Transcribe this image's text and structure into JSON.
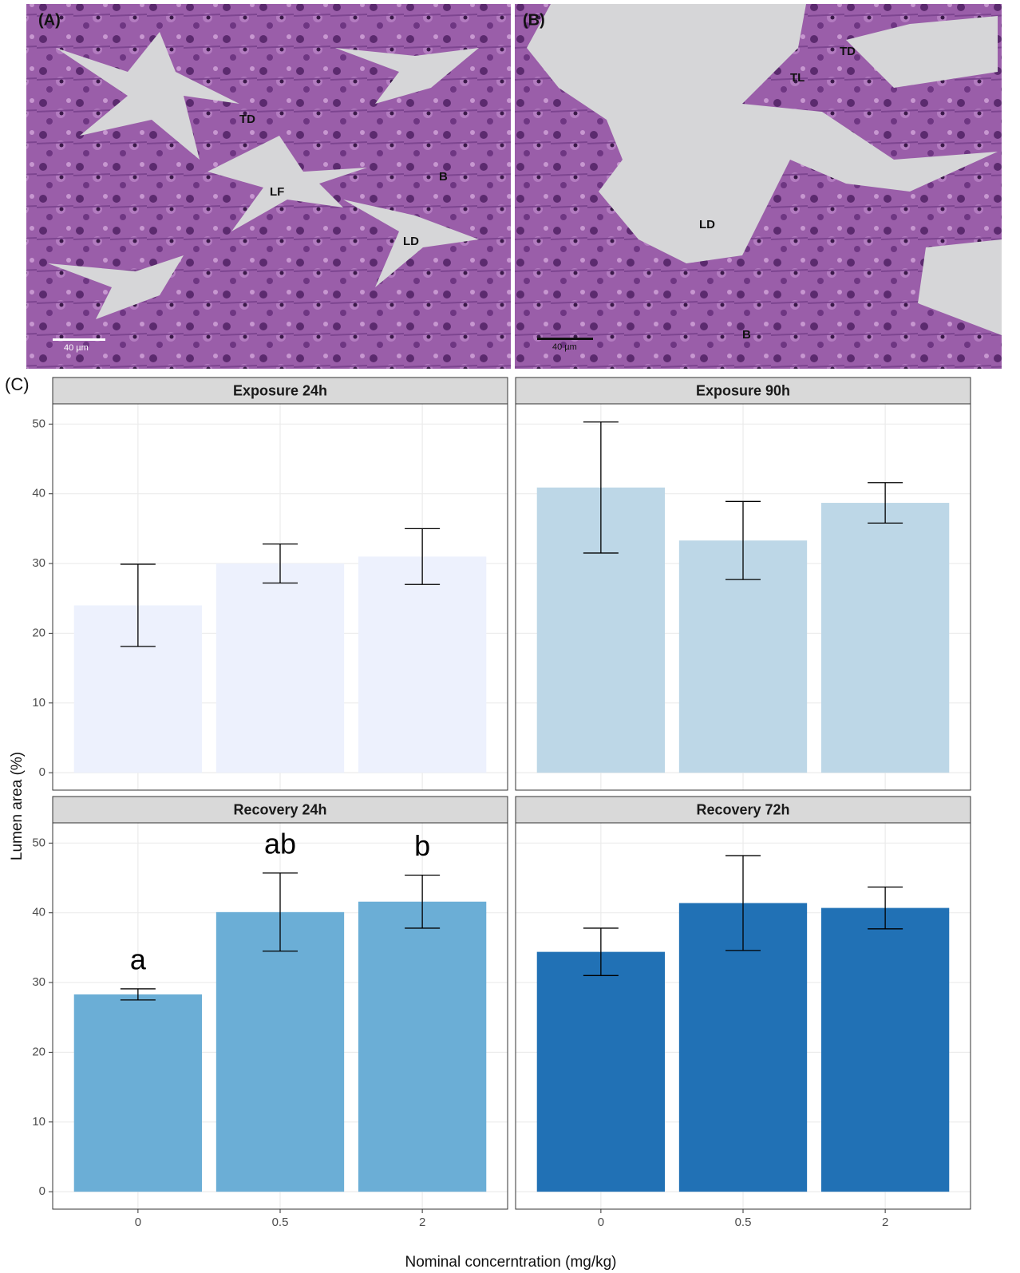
{
  "images": [
    {
      "label": "(A)",
      "annotations": [
        "TD",
        "LF",
        "B",
        "LD"
      ],
      "scale_bar": "40 µm"
    },
    {
      "label": "(B)",
      "annotations": [
        "TD",
        "TL",
        "LD",
        "B"
      ],
      "scale_bar": "40 µm"
    }
  ],
  "figure": {
    "panel_label": "(C)",
    "ylabel": "Lumen area (%)",
    "xlabel": "Nominal concerntration (mg/kg)"
  },
  "chart_data": [
    {
      "type": "bar",
      "title": "Exposure 24h",
      "categories": [
        "0",
        "0.5",
        "2"
      ],
      "values": [
        24,
        30,
        31
      ],
      "errors": [
        5.9,
        2.8,
        4.0
      ],
      "color": "#edf1fd",
      "ylim": [
        -2.5,
        52.9
      ],
      "yticks": [
        0,
        10,
        20,
        30,
        40,
        50
      ],
      "grid": true
    },
    {
      "type": "bar",
      "title": "Exposure 90h",
      "categories": [
        "0",
        "0.5",
        "2"
      ],
      "values": [
        40.9,
        33.3,
        38.7
      ],
      "errors": [
        9.4,
        5.6,
        2.9
      ],
      "color": "#bdd7e7",
      "ylim": [
        -2.5,
        52.9
      ],
      "yticks": [
        0,
        10,
        20,
        30,
        40,
        50
      ],
      "grid": true
    },
    {
      "type": "bar",
      "title": "Recovery 24h",
      "categories": [
        "0",
        "0.5",
        "2"
      ],
      "values": [
        28.3,
        40.1,
        41.6
      ],
      "errors": [
        0.8,
        5.6,
        3.8
      ],
      "labels": [
        "a",
        "ab",
        "b"
      ],
      "color": "#6baed6",
      "ylim": [
        -2.5,
        52.9
      ],
      "yticks": [
        0,
        10,
        20,
        30,
        40,
        50
      ],
      "grid": true
    },
    {
      "type": "bar",
      "title": "Recovery 72h",
      "categories": [
        "0",
        "0.5",
        "2"
      ],
      "values": [
        34.4,
        41.4,
        40.7
      ],
      "errors": [
        3.4,
        6.8,
        3.0
      ],
      "color": "#2171b5",
      "ylim": [
        -2.5,
        52.9
      ],
      "yticks": [
        0,
        10,
        20,
        30,
        40,
        50
      ],
      "grid": true
    }
  ]
}
